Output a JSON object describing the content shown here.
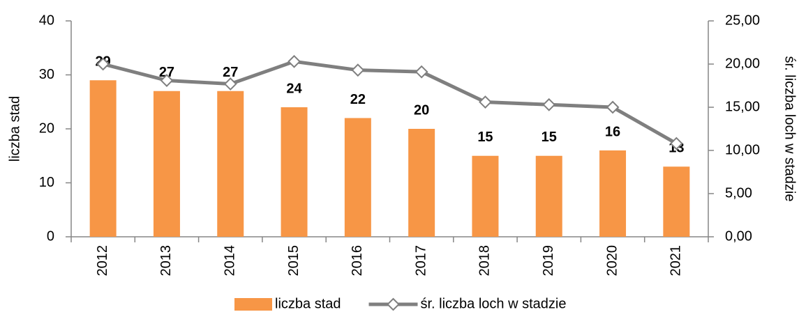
{
  "chart_data": {
    "type": "bar-line",
    "categories": [
      "2012",
      "2013",
      "2014",
      "2015",
      "2016",
      "2017",
      "2018",
      "2019",
      "2020",
      "2021"
    ],
    "series": [
      {
        "name": "liczba stad",
        "type": "bar",
        "color": "#f79646",
        "axis": "y",
        "values": [
          29,
          27,
          27,
          24,
          22,
          20,
          15,
          15,
          16,
          13
        ]
      },
      {
        "name": "śr. liczba loch w stadzie",
        "type": "line",
        "color": "#7f7f7f",
        "axis": "y2",
        "values": [
          20.0,
          18.1,
          17.7,
          20.3,
          19.3,
          19.1,
          15.6,
          15.3,
          15.0,
          10.8
        ]
      }
    ],
    "ylabel": "liczba stad",
    "y2label": "śr. liczba loch w stadzie",
    "ylim": [
      0,
      40
    ],
    "yticks": [
      0,
      10,
      20,
      30,
      40
    ],
    "y2lim": [
      0,
      25
    ],
    "y2ticks": [
      {
        "value": 0,
        "label": "0,00"
      },
      {
        "value": 5,
        "label": "5,00"
      },
      {
        "value": 10,
        "label": "10,00"
      },
      {
        "value": 15,
        "label": "15,00"
      },
      {
        "value": 20,
        "label": "20,00"
      },
      {
        "value": 25,
        "label": "25,00"
      }
    ],
    "legend": "bottom"
  }
}
